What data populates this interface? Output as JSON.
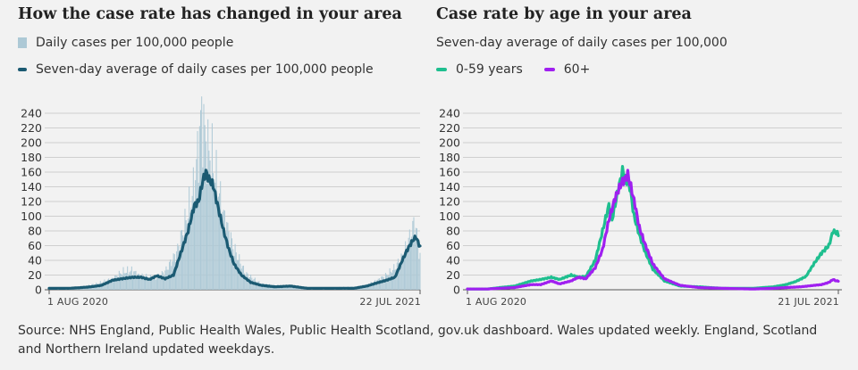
{
  "left": {
    "title": "How the case rate has changed in your area",
    "legend": [
      {
        "label": "Daily cases per 100,000 people",
        "kind": "bar",
        "color": "#adc9d6"
      },
      {
        "label": "Seven-day average of daily cases per 100,000 people",
        "kind": "line",
        "color": "#1b5a72"
      }
    ]
  },
  "right": {
    "title": "Case rate by age in your area",
    "subtitle": "Seven-day average of daily cases per 100,000",
    "legend": [
      {
        "label": "0-59 years",
        "color": "#1fbf8f"
      },
      {
        "label": "60+",
        "color": "#a020f0"
      }
    ]
  },
  "source": "Source: NHS England, Public Health Wales, Public Health Scotland, gov.uk dashboard. Wales updated weekly. England, Scotland and Northern Ireland updated weekdays.",
  "chart_data": [
    {
      "type": "bar",
      "title": "How the case rate has changed in your area",
      "ylim": [
        0,
        240
      ],
      "y_ticks": [
        0,
        20,
        40,
        60,
        80,
        100,
        120,
        140,
        160,
        180,
        200,
        220,
        240
      ],
      "x_range": [
        "2020-08-01",
        "2021-07-22"
      ],
      "x_labels": [
        "1 AUG 2020",
        "22 JUL 2021"
      ],
      "grid": true,
      "series": [
        {
          "name": "Daily cases per 100,000 people",
          "kind": "bar",
          "color": "#adc9d6",
          "points": [
            [
              "2020-08-01",
              2
            ],
            [
              "2020-08-15",
              2
            ],
            [
              "2020-09-01",
              4
            ],
            [
              "2020-09-15",
              8
            ],
            [
              "2020-10-01",
              15
            ],
            [
              "2020-10-10",
              24
            ],
            [
              "2020-10-20",
              26
            ],
            [
              "2020-10-25",
              20
            ],
            [
              "2020-11-01",
              18
            ],
            [
              "2020-11-10",
              15
            ],
            [
              "2020-11-20",
              25
            ],
            [
              "2020-12-01",
              50
            ],
            [
              "2020-12-10",
              95
            ],
            [
              "2020-12-18",
              140
            ],
            [
              "2020-12-25",
              240
            ],
            [
              "2020-12-30",
              190
            ],
            [
              "2021-01-03",
              185
            ],
            [
              "2021-01-08",
              150
            ],
            [
              "2021-01-15",
              100
            ],
            [
              "2021-01-25",
              55
            ],
            [
              "2021-02-05",
              22
            ],
            [
              "2021-02-20",
              8
            ],
            [
              "2021-03-10",
              5
            ],
            [
              "2021-04-01",
              3
            ],
            [
              "2021-05-01",
              3
            ],
            [
              "2021-05-20",
              4
            ],
            [
              "2021-06-01",
              6
            ],
            [
              "2021-06-10",
              12
            ],
            [
              "2021-06-20",
              20
            ],
            [
              "2021-06-28",
              30
            ],
            [
              "2021-07-05",
              45
            ],
            [
              "2021-07-12",
              70
            ],
            [
              "2021-07-17",
              93
            ],
            [
              "2021-07-22",
              45
            ]
          ]
        },
        {
          "name": "Seven-day average of daily cases per 100,000 people",
          "kind": "line",
          "color": "#1b5a72",
          "points": [
            [
              "2020-08-01",
              2
            ],
            [
              "2020-08-20",
              2
            ],
            [
              "2020-09-01",
              3
            ],
            [
              "2020-09-10",
              4
            ],
            [
              "2020-09-20",
              6
            ],
            [
              "2020-10-01",
              13
            ],
            [
              "2020-10-10",
              15
            ],
            [
              "2020-10-20",
              17
            ],
            [
              "2020-10-28",
              17
            ],
            [
              "2020-11-05",
              14
            ],
            [
              "2020-11-12",
              19
            ],
            [
              "2020-11-20",
              15
            ],
            [
              "2020-11-28",
              20
            ],
            [
              "2020-12-05",
              50
            ],
            [
              "2020-12-12",
              80
            ],
            [
              "2020-12-18",
              115
            ],
            [
              "2020-12-22",
              120
            ],
            [
              "2020-12-26",
              148
            ],
            [
              "2020-12-29",
              160
            ],
            [
              "2021-01-01",
              150
            ],
            [
              "2021-01-05",
              142
            ],
            [
              "2021-01-10",
              110
            ],
            [
              "2021-01-15",
              80
            ],
            [
              "2021-01-20",
              55
            ],
            [
              "2021-01-25",
              35
            ],
            [
              "2021-02-01",
              20
            ],
            [
              "2021-02-10",
              10
            ],
            [
              "2021-02-20",
              6
            ],
            [
              "2021-03-05",
              4
            ],
            [
              "2021-03-20",
              5
            ],
            [
              "2021-04-05",
              2
            ],
            [
              "2021-04-20",
              2
            ],
            [
              "2021-05-05",
              2
            ],
            [
              "2021-05-20",
              2
            ],
            [
              "2021-06-01",
              5
            ],
            [
              "2021-06-10",
              9
            ],
            [
              "2021-06-20",
              13
            ],
            [
              "2021-06-28",
              17
            ],
            [
              "2021-07-05",
              40
            ],
            [
              "2021-07-10",
              55
            ],
            [
              "2021-07-15",
              67
            ],
            [
              "2021-07-18",
              72
            ],
            [
              "2021-07-22",
              58
            ]
          ]
        }
      ]
    },
    {
      "type": "line",
      "title": "Case rate by age in your area",
      "subtitle": "Seven-day average of daily cases per 100,000",
      "ylim": [
        0,
        240
      ],
      "y_ticks": [
        0,
        20,
        40,
        60,
        80,
        100,
        120,
        140,
        160,
        180,
        200,
        220,
        240
      ],
      "x_range": [
        "2020-08-01",
        "2021-07-21"
      ],
      "x_labels": [
        "1 AUG 2020",
        "21 JUL 2021"
      ],
      "grid": true,
      "series": [
        {
          "name": "0-59 years",
          "color": "#1fbf8f",
          "points": [
            [
              "2020-08-01",
              1
            ],
            [
              "2020-08-20",
              1
            ],
            [
              "2020-09-01",
              3
            ],
            [
              "2020-09-15",
              5
            ],
            [
              "2020-10-01",
              12
            ],
            [
              "2020-10-10",
              14
            ],
            [
              "2020-10-20",
              17
            ],
            [
              "2020-10-28",
              14
            ],
            [
              "2020-11-08",
              20
            ],
            [
              "2020-11-15",
              17
            ],
            [
              "2020-11-22",
              18
            ],
            [
              "2020-12-01",
              40
            ],
            [
              "2020-12-08",
              80
            ],
            [
              "2020-12-14",
              115
            ],
            [
              "2020-12-17",
              95
            ],
            [
              "2020-12-22",
              130
            ],
            [
              "2020-12-27",
              162
            ],
            [
              "2020-12-30",
              150
            ],
            [
              "2021-01-03",
              140
            ],
            [
              "2021-01-07",
              100
            ],
            [
              "2021-01-12",
              75
            ],
            [
              "2021-01-18",
              50
            ],
            [
              "2021-01-25",
              28
            ],
            [
              "2021-02-05",
              12
            ],
            [
              "2021-02-20",
              5
            ],
            [
              "2021-03-10",
              4
            ],
            [
              "2021-04-01",
              2
            ],
            [
              "2021-05-01",
              2
            ],
            [
              "2021-05-20",
              4
            ],
            [
              "2021-06-01",
              7
            ],
            [
              "2021-06-10",
              11
            ],
            [
              "2021-06-20",
              18
            ],
            [
              "2021-06-28",
              36
            ],
            [
              "2021-07-05",
              50
            ],
            [
              "2021-07-12",
              60
            ],
            [
              "2021-07-16",
              80
            ],
            [
              "2021-07-19",
              78
            ],
            [
              "2021-07-21",
              75
            ]
          ]
        },
        {
          "name": "60+",
          "color": "#a020f0",
          "points": [
            [
              "2020-08-01",
              1
            ],
            [
              "2020-08-20",
              1
            ],
            [
              "2020-09-01",
              2
            ],
            [
              "2020-09-15",
              3
            ],
            [
              "2020-10-01",
              7
            ],
            [
              "2020-10-10",
              7
            ],
            [
              "2020-10-20",
              12
            ],
            [
              "2020-10-28",
              8
            ],
            [
              "2020-11-08",
              12
            ],
            [
              "2020-11-15",
              17
            ],
            [
              "2020-11-22",
              15
            ],
            [
              "2020-12-01",
              30
            ],
            [
              "2020-12-08",
              55
            ],
            [
              "2020-12-14",
              95
            ],
            [
              "2020-12-20",
              125
            ],
            [
              "2020-12-26",
              145
            ],
            [
              "2020-12-29",
              150
            ],
            [
              "2021-01-01",
              157
            ],
            [
              "2021-01-04",
              140
            ],
            [
              "2021-01-08",
              115
            ],
            [
              "2021-01-12",
              85
            ],
            [
              "2021-01-18",
              60
            ],
            [
              "2021-01-25",
              35
            ],
            [
              "2021-02-05",
              15
            ],
            [
              "2021-02-20",
              6
            ],
            [
              "2021-03-10",
              3
            ],
            [
              "2021-04-01",
              2
            ],
            [
              "2021-05-01",
              1
            ],
            [
              "2021-05-20",
              2
            ],
            [
              "2021-06-01",
              3
            ],
            [
              "2021-06-15",
              4
            ],
            [
              "2021-06-28",
              6
            ],
            [
              "2021-07-05",
              7
            ],
            [
              "2021-07-12",
              10
            ],
            [
              "2021-07-16",
              14
            ],
            [
              "2021-07-19",
              12
            ],
            [
              "2021-07-21",
              12
            ]
          ]
        }
      ]
    }
  ]
}
